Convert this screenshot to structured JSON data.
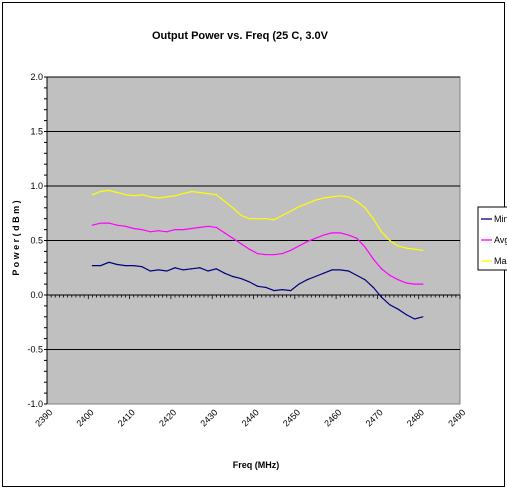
{
  "chart_data": {
    "type": "line",
    "title": "Output Power vs. Freq (25 C, 3.0V",
    "xlabel": "Freq (MHz)",
    "ylabel": "P o w e r  ( d B m )",
    "xlim": [
      2390,
      2490
    ],
    "ylim": [
      -1.0,
      2.0
    ],
    "x_ticks": [
      "2390",
      "2400",
      "2410",
      "2420",
      "2430",
      "2440",
      "2450",
      "2460",
      "2470",
      "2480",
      "2490"
    ],
    "y_ticks": [
      "2.0",
      "1.5",
      "1.0",
      "0.5",
      "0.0",
      "-0.5",
      "-1.0"
    ],
    "grid": "horizontal",
    "legend_position": "right",
    "plot_background": "#c0c0c0",
    "series": [
      {
        "name": "Min",
        "color": "#000080",
        "x": [
          2401,
          2403,
          2405,
          2407,
          2409,
          2411,
          2413,
          2415,
          2417,
          2419,
          2421,
          2423,
          2425,
          2427,
          2429,
          2431,
          2433,
          2435,
          2437,
          2439,
          2441,
          2443,
          2445,
          2447,
          2449,
          2451,
          2453,
          2455,
          2457,
          2459,
          2461,
          2463,
          2465,
          2467,
          2469,
          2471,
          2473,
          2475,
          2477,
          2479,
          2481
        ],
        "y": [
          0.27,
          0.27,
          0.3,
          0.28,
          0.27,
          0.27,
          0.26,
          0.22,
          0.23,
          0.22,
          0.25,
          0.23,
          0.24,
          0.25,
          0.22,
          0.24,
          0.2,
          0.17,
          0.15,
          0.12,
          0.08,
          0.07,
          0.04,
          0.05,
          0.04,
          0.1,
          0.14,
          0.17,
          0.2,
          0.23,
          0.23,
          0.22,
          0.18,
          0.14,
          0.07,
          -0.02,
          -0.09,
          -0.13,
          -0.18,
          -0.22,
          -0.2
        ]
      },
      {
        "name": "Avg",
        "color": "#ff00ff",
        "x": [
          2401,
          2403,
          2405,
          2407,
          2409,
          2411,
          2413,
          2415,
          2417,
          2419,
          2421,
          2423,
          2425,
          2427,
          2429,
          2431,
          2433,
          2435,
          2437,
          2439,
          2441,
          2443,
          2445,
          2447,
          2449,
          2451,
          2453,
          2455,
          2457,
          2459,
          2461,
          2463,
          2465,
          2467,
          2469,
          2471,
          2473,
          2475,
          2477,
          2479,
          2481
        ],
        "y": [
          0.64,
          0.66,
          0.66,
          0.64,
          0.63,
          0.61,
          0.6,
          0.58,
          0.59,
          0.58,
          0.6,
          0.6,
          0.61,
          0.62,
          0.63,
          0.62,
          0.57,
          0.52,
          0.47,
          0.42,
          0.38,
          0.37,
          0.37,
          0.38,
          0.41,
          0.45,
          0.49,
          0.52,
          0.55,
          0.57,
          0.57,
          0.55,
          0.52,
          0.44,
          0.33,
          0.24,
          0.18,
          0.14,
          0.11,
          0.1,
          0.1
        ]
      },
      {
        "name": "Max",
        "color": "#ffff00",
        "x": [
          2401,
          2403,
          2405,
          2407,
          2409,
          2411,
          2413,
          2415,
          2417,
          2419,
          2421,
          2423,
          2425,
          2427,
          2429,
          2431,
          2433,
          2435,
          2437,
          2439,
          2441,
          2443,
          2445,
          2447,
          2449,
          2451,
          2453,
          2455,
          2457,
          2459,
          2461,
          2463,
          2465,
          2467,
          2469,
          2471,
          2473,
          2475,
          2477,
          2479,
          2481
        ],
        "y": [
          0.92,
          0.95,
          0.96,
          0.94,
          0.92,
          0.91,
          0.92,
          0.9,
          0.89,
          0.9,
          0.91,
          0.93,
          0.95,
          0.94,
          0.93,
          0.92,
          0.86,
          0.8,
          0.73,
          0.7,
          0.7,
          0.7,
          0.69,
          0.73,
          0.77,
          0.81,
          0.84,
          0.87,
          0.89,
          0.9,
          0.91,
          0.9,
          0.86,
          0.8,
          0.7,
          0.58,
          0.5,
          0.45,
          0.43,
          0.42,
          0.41
        ]
      }
    ]
  }
}
